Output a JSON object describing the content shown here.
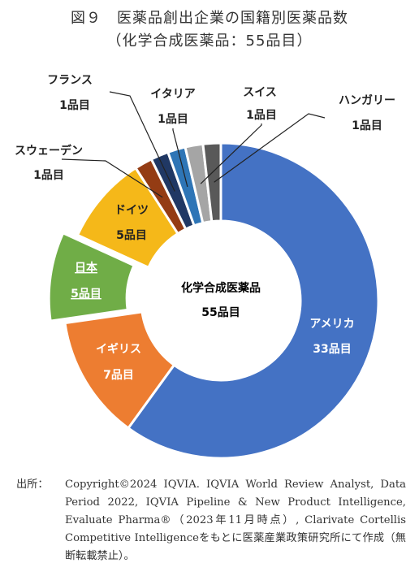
{
  "title_line1": "図９　医薬品創出企業の国籍別医薬品数",
  "title_line2": "（化学合成医薬品：55品目）",
  "center_label": {
    "line1": "化学合成医薬品",
    "line2": "55品目"
  },
  "chart_data": {
    "type": "pie",
    "donut": true,
    "total": 55,
    "unit": "品目",
    "categories": [
      "アメリカ",
      "イギリス",
      "日本",
      "ドイツ",
      "スウェーデン",
      "フランス",
      "イタリア",
      "スイス",
      "ハンガリー"
    ],
    "values": [
      33,
      7,
      5,
      5,
      1,
      1,
      1,
      1,
      1
    ],
    "value_labels": [
      "33品目",
      "7品目",
      "5品目",
      "5品目",
      "1品目",
      "1品目",
      "1品目",
      "1品目",
      "1品目"
    ],
    "colors": [
      "#4472C4",
      "#ED7D31",
      "#70AD47",
      "#F5B819",
      "#943C14",
      "#203864",
      "#2E75B6",
      "#A5A5A5",
      "#595959"
    ],
    "highlight": "日本"
  },
  "source": {
    "head": "出所：",
    "text": "Copyright©2024 IQVIA. IQVIA World Review Analyst, Data Period 2022, IQVIA Pipeline & New Product Intelligence, Evaluate Pharma®（2023年11月時点）, Clarivate Cortellis Competitive Intelligenceをもとに医薬産業政策研究所にて作成（無断転載禁止）。"
  }
}
